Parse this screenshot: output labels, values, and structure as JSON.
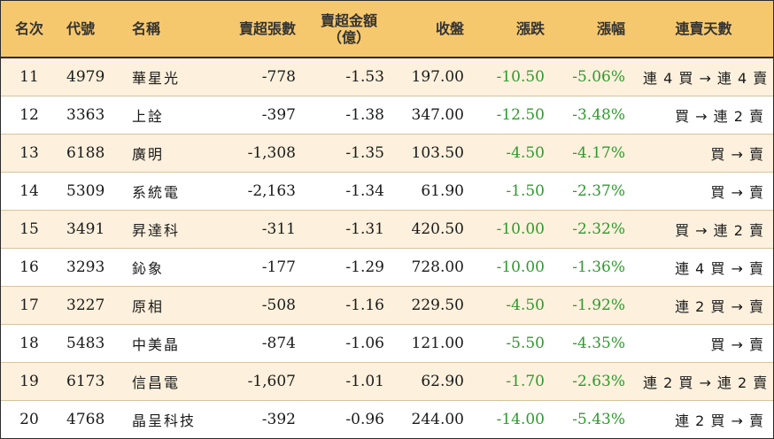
{
  "headers": {
    "rank": "名次",
    "code": "代號",
    "name": "名稱",
    "sell_lots": "賣超張數",
    "sell_amount_line1": "賣超金額",
    "sell_amount_line2": "（億）",
    "close": "收盤",
    "change": "漲跌",
    "pct": "漲幅",
    "streak": "連賣天數"
  },
  "colors": {
    "header_bg": "#f6c86e",
    "alt_row_bg": "#fdf0dc",
    "change_color": "#2f9a2f"
  },
  "rows": [
    {
      "rank": "11",
      "code": "4979",
      "name": "華星光",
      "sell_lots": "-778",
      "sell_amount": "-1.53",
      "close": "197.00",
      "change": "-10.50",
      "pct": "-5.06%",
      "streak": "連 4 買 → 連 4 賣"
    },
    {
      "rank": "12",
      "code": "3363",
      "name": "上詮",
      "sell_lots": "-397",
      "sell_amount": "-1.38",
      "close": "347.00",
      "change": "-12.50",
      "pct": "-3.48%",
      "streak": "買 → 連 2 賣"
    },
    {
      "rank": "13",
      "code": "6188",
      "name": "廣明",
      "sell_lots": "-1,308",
      "sell_amount": "-1.35",
      "close": "103.50",
      "change": "-4.50",
      "pct": "-4.17%",
      "streak": "買 → 賣"
    },
    {
      "rank": "14",
      "code": "5309",
      "name": "系統電",
      "sell_lots": "-2,163",
      "sell_amount": "-1.34",
      "close": "61.90",
      "change": "-1.50",
      "pct": "-2.37%",
      "streak": "買 → 賣"
    },
    {
      "rank": "15",
      "code": "3491",
      "name": "昇達科",
      "sell_lots": "-311",
      "sell_amount": "-1.31",
      "close": "420.50",
      "change": "-10.00",
      "pct": "-2.32%",
      "streak": "買 → 連 2 賣"
    },
    {
      "rank": "16",
      "code": "3293",
      "name": "鈊象",
      "sell_lots": "-177",
      "sell_amount": "-1.29",
      "close": "728.00",
      "change": "-10.00",
      "pct": "-1.36%",
      "streak": "連 4 買 → 賣"
    },
    {
      "rank": "17",
      "code": "3227",
      "name": "原相",
      "sell_lots": "-508",
      "sell_amount": "-1.16",
      "close": "229.50",
      "change": "-4.50",
      "pct": "-1.92%",
      "streak": "連 2 買 → 賣"
    },
    {
      "rank": "18",
      "code": "5483",
      "name": "中美晶",
      "sell_lots": "-874",
      "sell_amount": "-1.06",
      "close": "121.00",
      "change": "-5.50",
      "pct": "-4.35%",
      "streak": "買 → 賣"
    },
    {
      "rank": "19",
      "code": "6173",
      "name": "信昌電",
      "sell_lots": "-1,607",
      "sell_amount": "-1.01",
      "close": "62.90",
      "change": "-1.70",
      "pct": "-2.63%",
      "streak": "連 2 買 → 連 2 賣"
    },
    {
      "rank": "20",
      "code": "4768",
      "name": "晶呈科技",
      "sell_lots": "-392",
      "sell_amount": "-0.96",
      "close": "244.00",
      "change": "-14.00",
      "pct": "-5.43%",
      "streak": "連 2 買 → 賣"
    }
  ]
}
